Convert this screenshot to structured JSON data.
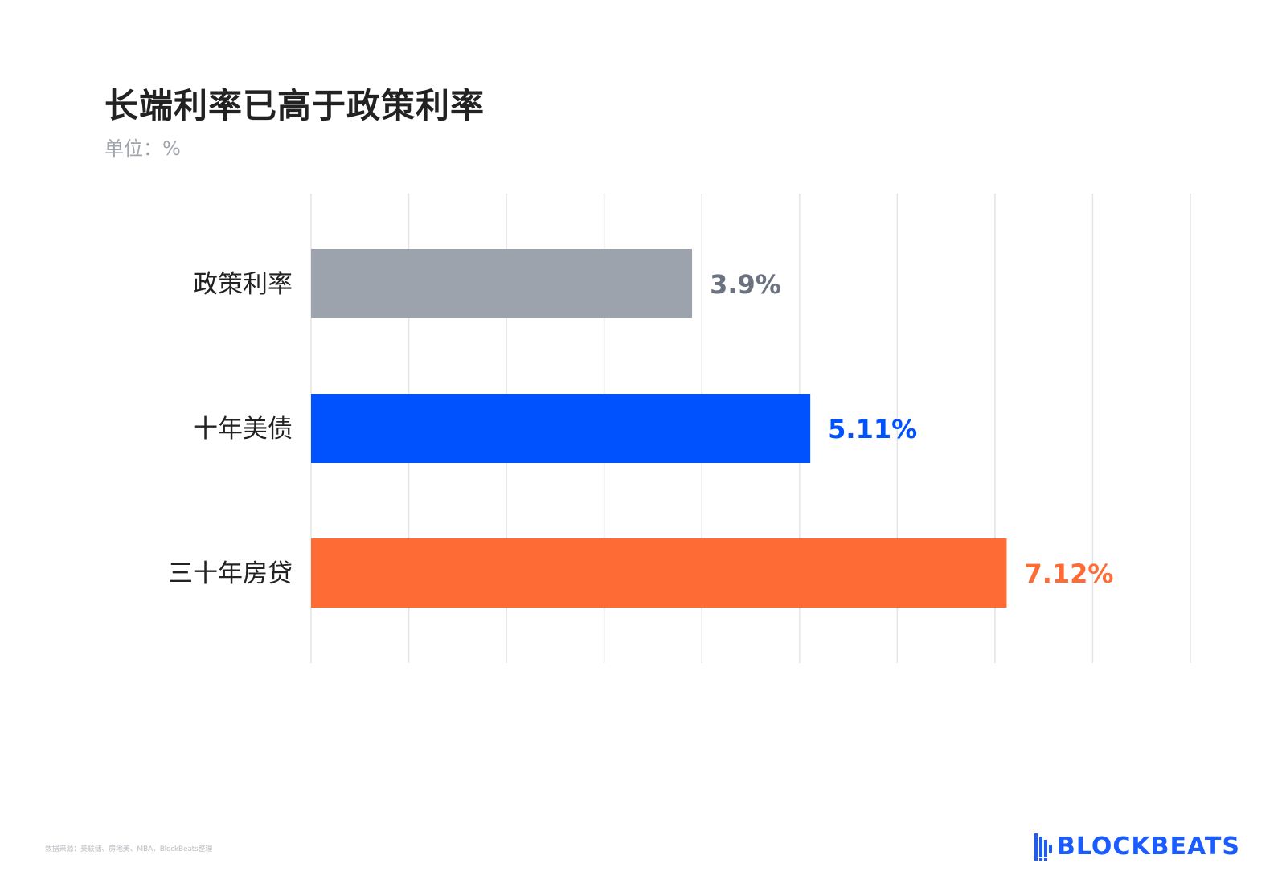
{
  "title": "长端利率已高于政策利率",
  "subtitle": "单位：%",
  "source": "数据来源：美联储、房地美、MBA，BlockBeats整理",
  "brand": {
    "name": "BLOCKBEATS",
    "color": "#1a5cff"
  },
  "chart_data": {
    "type": "bar",
    "orientation": "horizontal",
    "categories": [
      "政策利率",
      "十年美债",
      "三十年房贷"
    ],
    "values": [
      3.9,
      5.11,
      7.12
    ],
    "value_labels": [
      "3.9%",
      "5.11%",
      "7.12%"
    ],
    "colors": [
      "#9ca3ad",
      "#0052ff",
      "#ff6b35"
    ],
    "label_colors": [
      "#6b7280",
      "#0052ff",
      "#ff6b35"
    ],
    "xlim": [
      0,
      9
    ],
    "grid": true,
    "title": "长端利率已高于政策利率",
    "unit": "%"
  }
}
